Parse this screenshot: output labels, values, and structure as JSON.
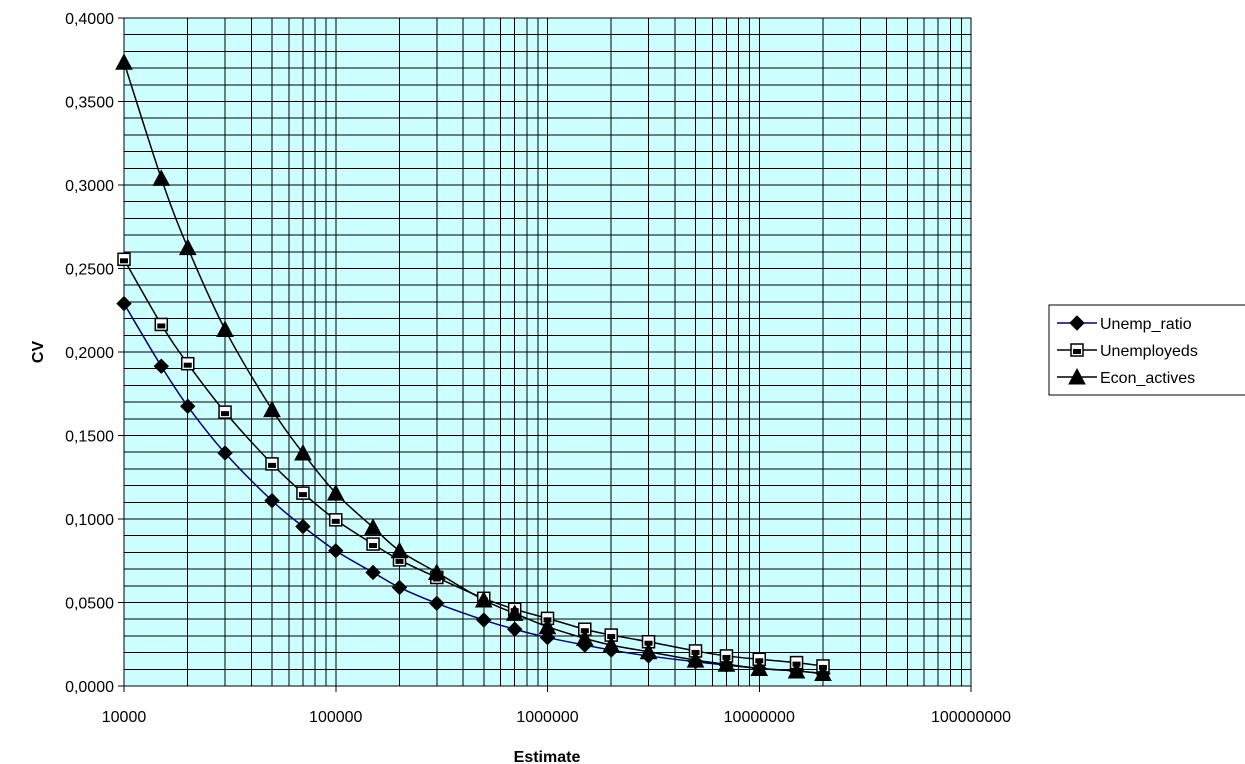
{
  "chart_data": {
    "type": "line",
    "title": "",
    "xlabel": "Estimate",
    "ylabel": "CV",
    "xscale": "log",
    "xlim": [
      10000,
      100000000
    ],
    "ylim": [
      0,
      0.4
    ],
    "x_ticks": [
      10000,
      100000,
      1000000,
      10000000,
      100000000
    ],
    "x_tick_labels": [
      "10000",
      "100000",
      "1000000",
      "10000000",
      "100000000"
    ],
    "y_ticks": [
      0,
      0.05,
      0.1,
      0.15,
      0.2,
      0.25,
      0.3,
      0.35,
      0.4
    ],
    "y_tick_labels": [
      "0,0000",
      "0,0500",
      "0,1000",
      "0,1500",
      "0,2000",
      "0,2500",
      "0,3000",
      "0,3500",
      "0,4000"
    ],
    "grid": true,
    "plot_background": "#ccffff",
    "legend_position": "right",
    "x": [
      10000,
      15000,
      20000,
      30000,
      50000,
      70000,
      100000,
      150000,
      200000,
      300000,
      500000,
      700000,
      1000000,
      1500000,
      2000000,
      3000000,
      5000000,
      7000000,
      10000000,
      15000000,
      20000000
    ],
    "series": [
      {
        "name": "Unemp_ratio",
        "marker": "diamond",
        "color": "#000080",
        "values": [
          0.229,
          0.1915,
          0.1675,
          0.1395,
          0.111,
          0.0955,
          0.081,
          0.068,
          0.059,
          0.0495,
          0.0395,
          0.034,
          0.029,
          0.0245,
          0.0215,
          0.018,
          0.0145,
          0.0125,
          0.0105,
          0.009,
          0.0075
        ]
      },
      {
        "name": "Unemployeds",
        "marker": "square",
        "color": "#000000",
        "values": [
          0.2555,
          0.2165,
          0.193,
          0.164,
          0.133,
          0.1155,
          0.0995,
          0.085,
          0.0755,
          0.065,
          0.0525,
          0.046,
          0.0405,
          0.034,
          0.0305,
          0.0265,
          0.021,
          0.018,
          0.016,
          0.014,
          0.012
        ]
      },
      {
        "name": "Econ_actives",
        "marker": "triangle",
        "color": "#000000",
        "values": [
          0.3735,
          0.304,
          0.2625,
          0.2135,
          0.1655,
          0.1395,
          0.1155,
          0.095,
          0.081,
          0.068,
          0.0515,
          0.0435,
          0.0355,
          0.0285,
          0.0245,
          0.0205,
          0.0155,
          0.013,
          0.0105,
          0.009,
          0.0075
        ]
      }
    ]
  }
}
